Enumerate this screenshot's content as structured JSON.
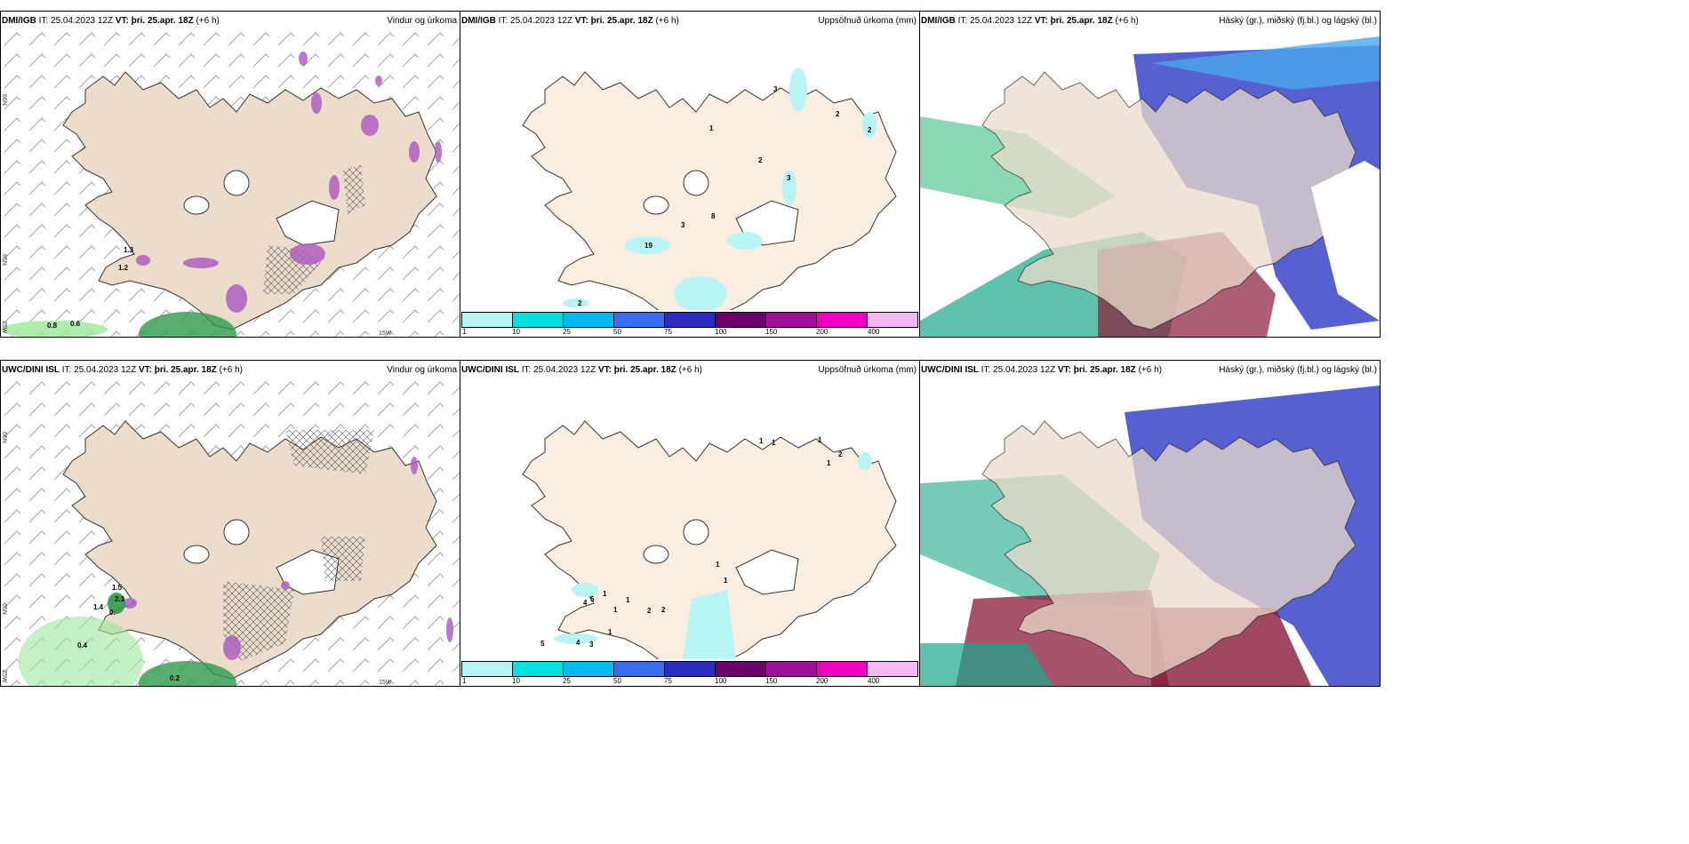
{
  "panels": [
    {
      "source": "DMI/IGB",
      "it_label": "IT:",
      "it": "25.04.2023 12Z",
      "vt_label": "VT:",
      "vt": "þri. 25.apr. 18Z",
      "offset": "(+6 h)",
      "title": "Vindur og úrkoma",
      "labels": [
        "1.3",
        "1.2",
        "0.8",
        "0.6"
      ],
      "grid": [
        "66N",
        "65N",
        "64N",
        "25W",
        "15W"
      ]
    },
    {
      "source": "DMI/IGB",
      "it_label": "IT:",
      "it": "25.04.2023 12Z",
      "vt_label": "VT:",
      "vt": "þri. 25.apr. 18Z",
      "offset": "(+6 h)",
      "title": "Uppsöfnuð úrkoma (mm)",
      "labels": [
        "3",
        "2",
        "2",
        "1",
        "2",
        "3",
        "3",
        "8",
        "19",
        "2"
      ]
    },
    {
      "source": "DMI/IGB",
      "it_label": "IT:",
      "it": "25.04.2023 12Z",
      "vt_label": "VT:",
      "vt": "þri. 25.apr. 18Z",
      "offset": "(+6 h)",
      "title": "Háský (gr.), miðský (fj.bl.) og lágský (bl.)"
    },
    {
      "source": "UWC/DINI ISL",
      "it_label": "IT:",
      "it": "25.04.2023 12Z",
      "vt_label": "VT:",
      "vt": "þri. 25.apr. 18Z",
      "offset": "(+6 h)",
      "title": "Vindur og úrkoma",
      "labels": [
        "1.5",
        "2.3",
        "1.4",
        "0.",
        "0.4",
        "0.2"
      ],
      "grid": [
        "66N",
        "65N",
        "64N",
        "25W",
        "15W"
      ]
    },
    {
      "source": "UWC/DINI ISL",
      "it_label": "IT:",
      "it": "25.04.2023 12Z",
      "vt_label": "VT:",
      "vt": "þri. 25.apr. 18Z",
      "offset": "(+6 h)",
      "title": "Uppsöfnuð úrkoma (mm)",
      "labels": [
        "1",
        "1",
        "1",
        "2",
        "1",
        "1",
        "1",
        "2",
        "5",
        "4",
        "1",
        "1",
        "2",
        "1",
        "1",
        "5",
        "4",
        "3"
      ]
    },
    {
      "source": "UWC/DINI ISL",
      "it_label": "IT:",
      "it": "25.04.2023 12Z",
      "vt_label": "VT:",
      "vt": "þri. 25.apr. 18Z",
      "offset": "(+6 h)",
      "title": "Háský (gr.), miðský (fj.bl.) og lágský (bl.)"
    }
  ],
  "colorbar": {
    "colors": [
      "#b8f4f4",
      "#00e0e0",
      "#00bcec",
      "#3a6cf0",
      "#2c2cc0",
      "#6a006a",
      "#a0109a",
      "#f000c0",
      "#f4b8f4"
    ],
    "ticks": [
      "1",
      "10",
      "25",
      "50",
      "75",
      "100",
      "150",
      "200",
      "400"
    ]
  },
  "colors": {
    "land": "#ecdccb",
    "land2": "#fbeee0",
    "precip_cyan": "#b8f4f4",
    "green": "#2e9a4a",
    "pink": "#b060c0"
  }
}
